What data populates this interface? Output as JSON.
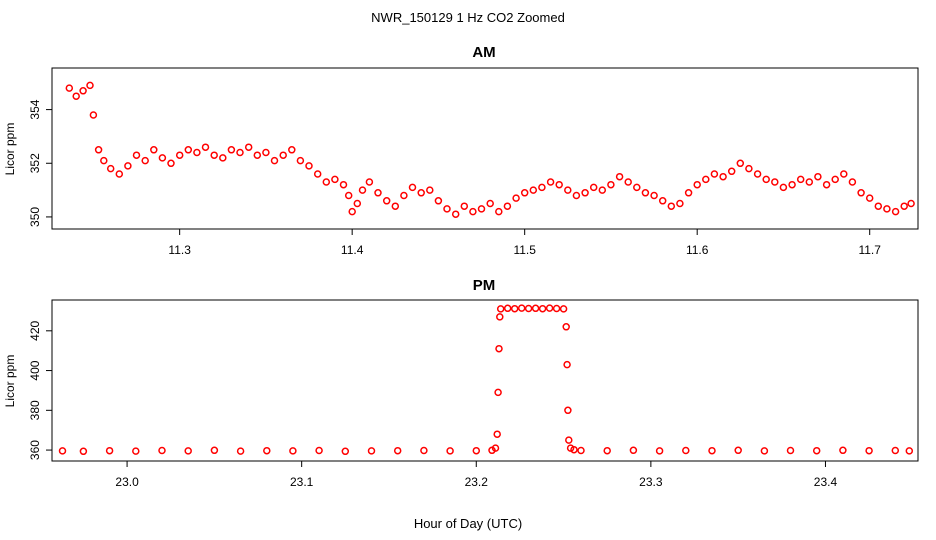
{
  "figure_title": "NWR_150129  1 Hz CO2 Zoomed",
  "xlabel": "Hour of Day (UTC)",
  "point_color": "#ff0000",
  "chart_data": [
    {
      "type": "scatter",
      "title": "AM",
      "ylabel": "Licor ppm",
      "xlim": [
        11.226,
        11.728
      ],
      "ylim": [
        349.55,
        355.55
      ],
      "xticks": [
        11.3,
        11.4,
        11.5,
        11.6,
        11.7
      ],
      "xtick_labels": [
        "11.3",
        "11.4",
        "11.5",
        "11.6",
        "11.7"
      ],
      "yticks": [
        350,
        352,
        354
      ],
      "ytick_labels": [
        "350",
        "352",
        "354"
      ],
      "series": [
        {
          "marker": "open-circle",
          "x": [
            11.236,
            11.24,
            11.244,
            11.248,
            11.25,
            11.253,
            11.256,
            11.26,
            11.265,
            11.27,
            11.275,
            11.28,
            11.285,
            11.29,
            11.295,
            11.3,
            11.305,
            11.31,
            11.315,
            11.32,
            11.325,
            11.33,
            11.335,
            11.34,
            11.345,
            11.35,
            11.355,
            11.36,
            11.365,
            11.37,
            11.375,
            11.38,
            11.385,
            11.39,
            11.395,
            11.398,
            11.4,
            11.403,
            11.406,
            11.41,
            11.415,
            11.42,
            11.425,
            11.43,
            11.435,
            11.44,
            11.445,
            11.45,
            11.455,
            11.46,
            11.465,
            11.47,
            11.475,
            11.48,
            11.485,
            11.49,
            11.495,
            11.5,
            11.505,
            11.51,
            11.515,
            11.52,
            11.525,
            11.53,
            11.535,
            11.54,
            11.545,
            11.55,
            11.555,
            11.56,
            11.565,
            11.57,
            11.575,
            11.58,
            11.585,
            11.59,
            11.595,
            11.6,
            11.605,
            11.61,
            11.615,
            11.62,
            11.625,
            11.63,
            11.635,
            11.64,
            11.645,
            11.65,
            11.655,
            11.66,
            11.665,
            11.67,
            11.675,
            11.68,
            11.685,
            11.69,
            11.695,
            11.7,
            11.705,
            11.71,
            11.715,
            11.72,
            11.724
          ],
          "y": [
            354.8,
            354.5,
            354.7,
            354.9,
            353.8,
            352.5,
            352.1,
            351.8,
            351.6,
            351.9,
            352.3,
            352.1,
            352.5,
            352.2,
            352.0,
            352.3,
            352.5,
            352.4,
            352.6,
            352.3,
            352.2,
            352.5,
            352.4,
            352.6,
            352.3,
            352.4,
            352.1,
            352.3,
            352.5,
            352.1,
            351.9,
            351.6,
            351.3,
            351.4,
            351.2,
            350.8,
            350.2,
            350.5,
            351.0,
            351.3,
            350.9,
            350.6,
            350.4,
            350.8,
            351.1,
            350.9,
            351.0,
            350.6,
            350.3,
            350.1,
            350.4,
            350.2,
            350.3,
            350.5,
            350.2,
            350.4,
            350.7,
            350.9,
            351.0,
            351.1,
            351.3,
            351.2,
            351.0,
            350.8,
            350.9,
            351.1,
            351.0,
            351.2,
            351.5,
            351.3,
            351.1,
            350.9,
            350.8,
            350.6,
            350.4,
            350.5,
            350.9,
            351.2,
            351.4,
            351.6,
            351.5,
            351.7,
            352.0,
            351.8,
            351.6,
            351.4,
            351.3,
            351.1,
            351.2,
            351.4,
            351.3,
            351.5,
            351.2,
            351.4,
            351.6,
            351.3,
            350.9,
            350.7,
            350.4,
            350.3,
            350.2,
            350.4,
            350.5
          ]
        }
      ]
    },
    {
      "type": "scatter",
      "title": "PM",
      "ylabel": "Licor ppm",
      "xlim": [
        22.957,
        23.453
      ],
      "ylim": [
        354.5,
        435.5
      ],
      "xticks": [
        23.0,
        23.1,
        23.2,
        23.3,
        23.4
      ],
      "xtick_labels": [
        "23.0",
        "23.1",
        "23.2",
        "23.3",
        "23.4"
      ],
      "yticks": [
        360,
        380,
        400,
        420
      ],
      "ytick_labels": [
        "360",
        "380",
        "400",
        "420"
      ],
      "series": [
        {
          "marker": "open-circle",
          "x": [
            22.963,
            22.975,
            22.99,
            23.005,
            23.02,
            23.035,
            23.05,
            23.065,
            23.08,
            23.095,
            23.11,
            23.125,
            23.14,
            23.155,
            23.17,
            23.185,
            23.2,
            23.209,
            23.211,
            23.212,
            23.2125,
            23.213,
            23.2135,
            23.214,
            23.218,
            23.222,
            23.226,
            23.23,
            23.234,
            23.238,
            23.242,
            23.246,
            23.25,
            23.2515,
            23.252,
            23.2525,
            23.253,
            23.254,
            23.256,
            23.26,
            23.275,
            23.29,
            23.305,
            23.32,
            23.335,
            23.35,
            23.365,
            23.38,
            23.395,
            23.41,
            23.425,
            23.44,
            23.448
          ],
          "y": [
            359.6,
            359.4,
            359.7,
            359.5,
            359.8,
            359.6,
            359.9,
            359.5,
            359.7,
            359.6,
            359.8,
            359.4,
            359.6,
            359.7,
            359.8,
            359.6,
            359.7,
            359.9,
            361.0,
            368.0,
            389.0,
            411.0,
            427.0,
            431.0,
            431.3,
            431.1,
            431.4,
            431.2,
            431.3,
            431.1,
            431.4,
            431.2,
            431.0,
            422.0,
            403.0,
            380.0,
            365.0,
            361.0,
            360.2,
            359.8,
            359.7,
            359.9,
            359.6,
            359.8,
            359.7,
            359.9,
            359.6,
            359.8,
            359.7,
            359.9,
            359.7,
            359.8,
            359.6
          ]
        }
      ]
    }
  ]
}
